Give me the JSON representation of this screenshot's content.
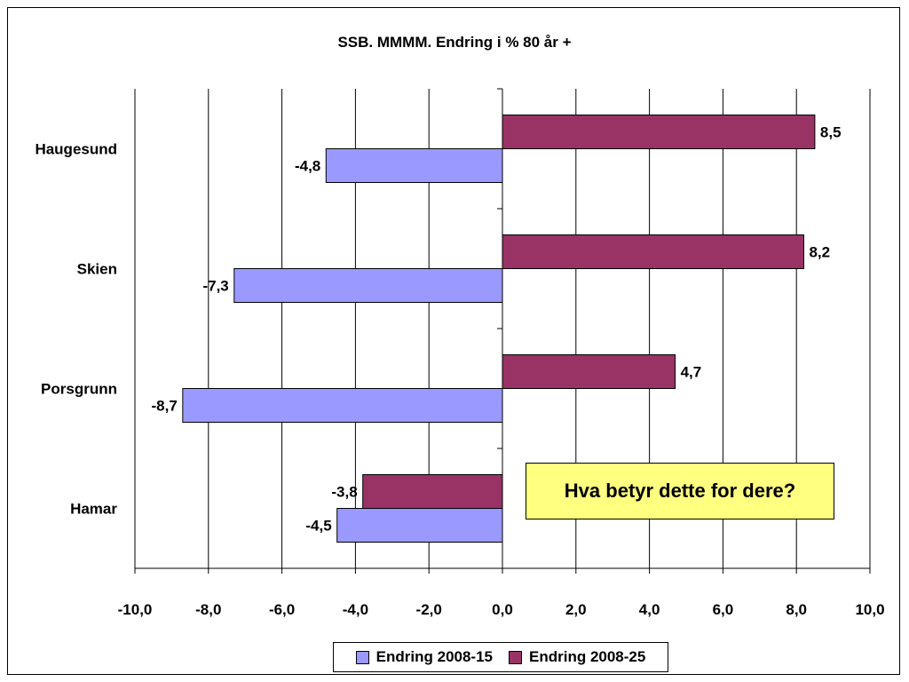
{
  "chart_data": {
    "type": "bar",
    "orientation": "horizontal",
    "title": "SSB. MMMM. Endring i % 80 år +",
    "categories": [
      "Haugesund",
      "Skien",
      "Porsgrunn",
      "Hamar"
    ],
    "series": [
      {
        "name": "Endring 2008-15",
        "color": "#9999ff",
        "values": [
          -4.8,
          -7.3,
          -8.7,
          -4.5
        ],
        "labels": [
          "-4,8",
          "-7,3",
          "-8,7",
          "-4,5"
        ]
      },
      {
        "name": "Endring 2008-25",
        "color": "#993366",
        "values": [
          8.5,
          8.2,
          4.7,
          -3.8
        ],
        "labels": [
          "8,5",
          "8,2",
          "4,7",
          "-3,8"
        ]
      }
    ],
    "xlim": [
      -10,
      10
    ],
    "x_ticks": [
      -10,
      -8,
      -6,
      -4,
      -2,
      0,
      2,
      4,
      6,
      8,
      10
    ],
    "x_tick_labels": [
      "-10,0",
      "-8,0",
      "-6,0",
      "-4,0",
      "-2,0",
      "0,0",
      "2,0",
      "4,0",
      "6,0",
      "8,0",
      "10,0"
    ],
    "grid": true,
    "legend_position": "bottom",
    "annotation": "Hva betyr dette for dere?"
  }
}
